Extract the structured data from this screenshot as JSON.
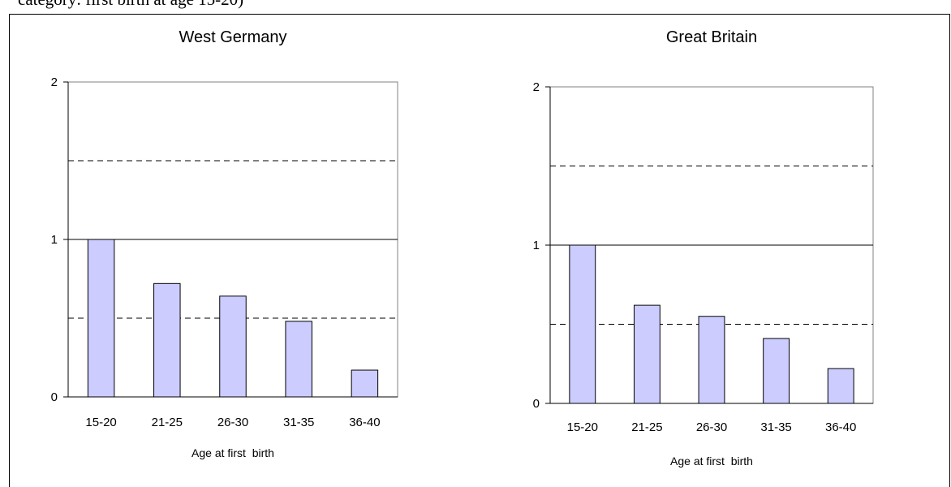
{
  "caption": "category: first birth at age 15-20)",
  "chart_data": [
    {
      "type": "bar",
      "title": "West Germany",
      "categories": [
        "15-20",
        "21-25",
        "26-30",
        "31-35",
        "36-40"
      ],
      "values": [
        1.0,
        0.72,
        0.64,
        0.48,
        0.17
      ],
      "xlabel": "Age at first  birth",
      "ylabel": "",
      "ylim": [
        0,
        2
      ],
      "yticks": [
        "0",
        "1",
        "2"
      ],
      "reference_lines": {
        "solid": [
          1
        ],
        "dashed": [
          0.5,
          1.5
        ]
      },
      "bar_color": "#ccccff",
      "bar_stroke": "#000000",
      "grid": false,
      "legend": "none"
    },
    {
      "type": "bar",
      "title": "Great Britain",
      "categories": [
        "15-20",
        "21-25",
        "26-30",
        "31-35",
        "36-40"
      ],
      "values": [
        1.0,
        0.62,
        0.55,
        0.41,
        0.22
      ],
      "xlabel": "Age at first  birth",
      "ylabel": "",
      "ylim": [
        0,
        2
      ],
      "yticks": [
        "0",
        "1",
        "2"
      ],
      "reference_lines": {
        "solid": [
          1
        ],
        "dashed": [
          0.5,
          1.5
        ]
      },
      "bar_color": "#ccccff",
      "bar_stroke": "#000000",
      "grid": false,
      "legend": "none"
    }
  ]
}
